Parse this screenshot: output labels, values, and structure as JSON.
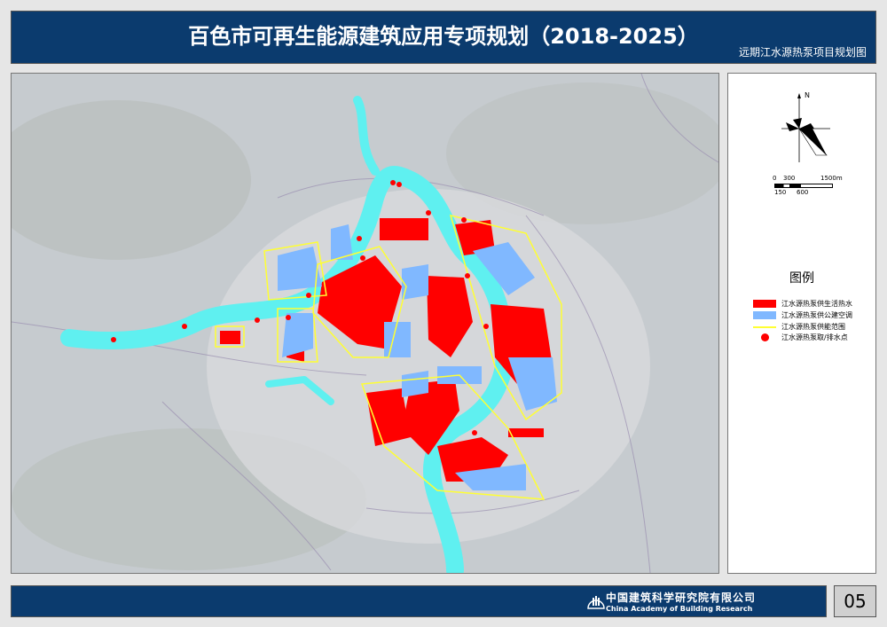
{
  "header": {
    "title": "百色市可再生能源建筑应用专项规划（2018-2025）",
    "subtitle": "远期江水源热泵项目规划图"
  },
  "compass": {
    "north_label": "N"
  },
  "scale_bar": {
    "top_labels": [
      "0",
      "300",
      "1500m"
    ],
    "bottom_labels": [
      "150",
      "600"
    ]
  },
  "legend": {
    "title": "图例",
    "items": [
      {
        "label": "江水源热泵供生活热水",
        "color": "#ff0000",
        "type": "fill"
      },
      {
        "label": "江水源热泵供公建空调",
        "color": "#80b8ff",
        "type": "fill"
      },
      {
        "label": "江水源热泵供能范围",
        "color": "#ffff33",
        "type": "line"
      },
      {
        "label": "江水源热泵取/排水点",
        "color": "#ff0000",
        "type": "dot"
      }
    ]
  },
  "footer": {
    "org_cn": "中国建筑科学研究院有限公司",
    "org_en": "China Academy of Building Research",
    "page": "05"
  },
  "colors": {
    "header_bg": "#0b3b6e",
    "river": "#5ff0f0",
    "hot_water": "#ff0000",
    "ac": "#80b8ff",
    "boundary": "#ffff33"
  }
}
